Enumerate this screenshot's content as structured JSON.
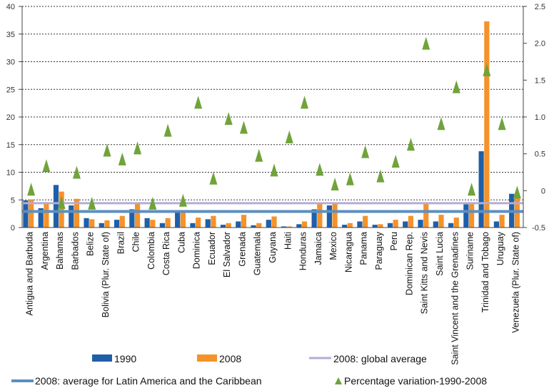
{
  "chart_data": {
    "type": "bar",
    "categories": [
      "Antigua and Barbuda",
      "Argentina",
      "Bahamas",
      "Barbados",
      "Belize",
      "Bolivia (Plur. State of)",
      "Brazil",
      "Chile",
      "Colombia",
      "Costa Rica",
      "Cuba",
      "Dominica",
      "Ecuador",
      "El Salvador",
      "Grenada",
      "Guatemala",
      "Guyana",
      "Haiti",
      "Honduras",
      "Jamaica",
      "Mexico",
      "Nicaragua",
      "Panama",
      "Paraguay",
      "Peru",
      "Dominican Rep.",
      "Saint Kitts and Nevis",
      "Saint Lucia",
      "Saint Vincent and the Grenadines",
      "Suriname",
      "Trinidad and Tobago",
      "Uruguay",
      "Venezuela (Plur. State of)"
    ],
    "series": [
      {
        "name": "1990",
        "type": "bar",
        "color": "#1f5fa8",
        "axis": "left",
        "values": [
          4.9,
          3.5,
          7.7,
          4.0,
          1.7,
          0.8,
          1.4,
          3.3,
          1.7,
          0.8,
          2.9,
          0.8,
          1.5,
          0.5,
          1.1,
          0.4,
          1.4,
          0.2,
          0.6,
          3.3,
          4.0,
          0.5,
          1.1,
          0.5,
          0.8,
          1.1,
          1.4,
          1.1,
          0.8,
          4.2,
          13.8,
          1.1,
          6.1
        ]
      },
      {
        "name": "2008",
        "type": "bar",
        "color": "#f5922a",
        "axis": "left",
        "values": [
          5.1,
          4.6,
          6.5,
          5.2,
          1.5,
          1.3,
          2.1,
          4.3,
          1.4,
          1.7,
          2.8,
          1.8,
          2.1,
          0.8,
          2.3,
          0.8,
          2.0,
          0.2,
          1.1,
          4.3,
          4.4,
          0.8,
          2.1,
          0.6,
          1.4,
          2.1,
          4.4,
          2.3,
          1.8,
          4.3,
          37.3,
          2.3,
          6.1
        ]
      },
      {
        "name": "Percentage variation-1990-2008",
        "type": "scatter",
        "marker": "triangle",
        "color": "#70a33a",
        "axis": "right",
        "values": [
          0.02,
          0.34,
          -0.16,
          0.25,
          -0.17,
          0.55,
          0.43,
          0.58,
          -0.17,
          0.82,
          -0.13,
          1.2,
          0.17,
          0.98,
          0.86,
          0.48,
          0.28,
          0.73,
          1.2,
          0.29,
          0.09,
          0.16,
          0.53,
          0.2,
          0.4,
          0.63,
          2.0,
          0.91,
          1.41,
          0.02,
          1.64,
          0.91,
          -0.02
        ]
      }
    ],
    "reference_lines": [
      {
        "name": "2008: global average",
        "value": 4.4,
        "color": "#b3acd6",
        "axis": "left"
      },
      {
        "name": "2008: average for Latin America and the Caribbean",
        "value": 2.9,
        "color": "#5d8fc1",
        "axis": "left"
      }
    ],
    "y_left": {
      "min": 0,
      "max": 40,
      "ticks": [
        "0",
        "5",
        "10",
        "15",
        "20",
        "25",
        "30",
        "35",
        "40"
      ]
    },
    "y_right": {
      "min": -0.5,
      "max": 2.5,
      "ticks": [
        "-0.5",
        "0",
        "0.5",
        "1.0",
        "1.5",
        "2.0",
        "2.5"
      ]
    },
    "grid": true,
    "legend_position": "bottom",
    "legend": {
      "row1": [
        "1990",
        "2008",
        "2008: global average"
      ],
      "row2": [
        "2008: average for Latin America and the Caribbean",
        "Percentage variation-1990-2008"
      ]
    }
  },
  "colors": {
    "bar1990": "#1f5fa8",
    "bar2008": "#f5922a",
    "triangle": "#70a33a",
    "global_avg": "#b3acd6",
    "lac_avg": "#5d8fc1",
    "grid": "#333333"
  }
}
